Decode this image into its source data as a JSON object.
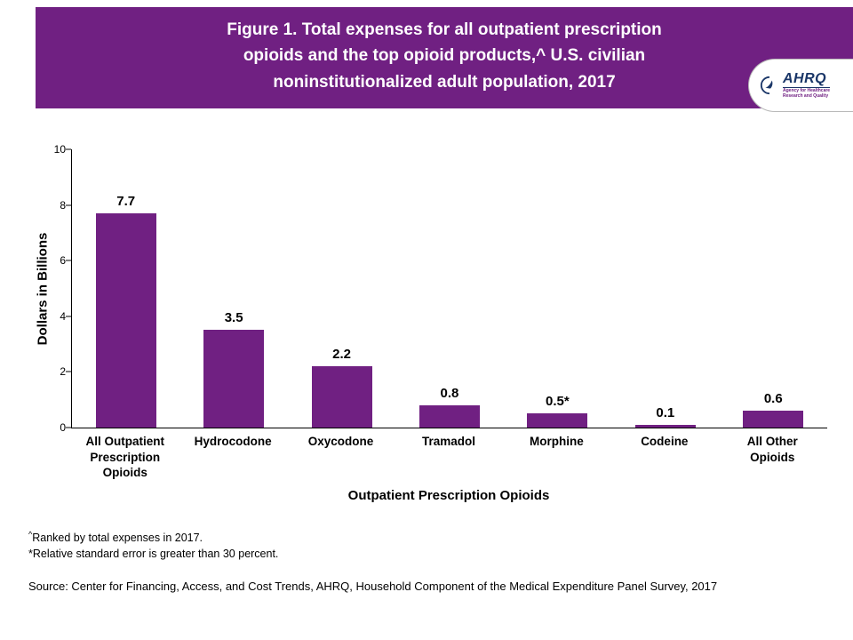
{
  "colors": {
    "accent_purple": "#702082",
    "logo_navy": "#1a3668"
  },
  "header": {
    "title_lines": [
      "Figure 1. Total expenses for all outpatient prescription",
      "opioids and the top opioid products,^ U.S. civilian",
      "noninstitutionalized adult population, 2017"
    ],
    "logo": {
      "name": "AHRQ",
      "tagline_line1": "Agency for Healthcare",
      "tagline_line2": "Research and Quality"
    }
  },
  "chart_data": {
    "type": "bar",
    "title": "Figure 1. Total expenses for all outpatient prescription opioids and the top opioid products,^ U.S. civilian noninstitutionalized adult population, 2017",
    "categories": [
      "All Outpatient\nPrescription\nOpioids",
      "Hydrocodone",
      "Oxycodone",
      "Tramadol",
      "Morphine",
      "Codeine",
      "All Other\nOpioids"
    ],
    "values": [
      7.7,
      3.5,
      2.2,
      0.8,
      0.5,
      0.1,
      0.6
    ],
    "value_labels": [
      "7.7",
      "3.5",
      "2.2",
      "0.8",
      "0.5*",
      "0.1",
      "0.6"
    ],
    "xlabel": "Outpatient Prescription Opioids",
    "ylabel": "Dollars in Billions",
    "ylim": [
      0,
      10
    ],
    "yticks": [
      0,
      2,
      4,
      6,
      8,
      10
    ],
    "bar_color": "#702082",
    "grid": false,
    "legend": "none"
  },
  "footnotes": {
    "note1_marker": "^",
    "note1_text": "Ranked by total expenses in 2017.",
    "note2": "*Relative standard error is greater than 30 percent.",
    "source": "Source: Center for Financing, Access, and Cost Trends, AHRQ, Household Component of the Medical Expenditure Panel Survey, 2017"
  }
}
